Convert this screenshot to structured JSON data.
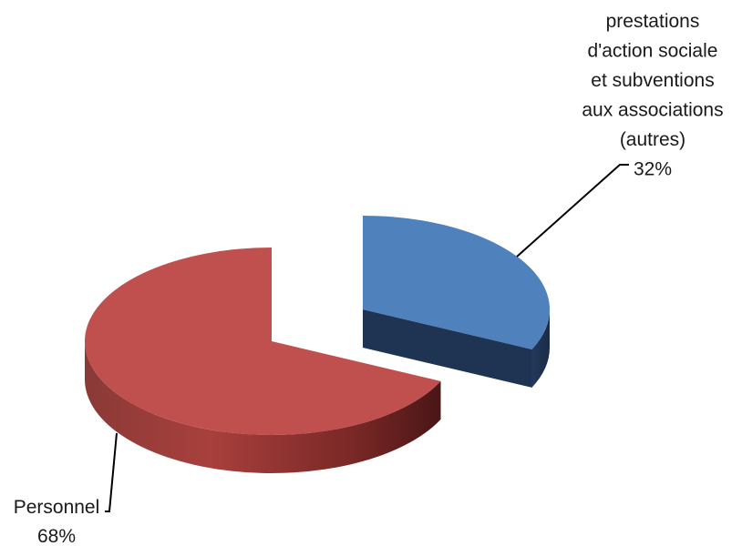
{
  "chart_data": {
    "type": "pie",
    "style": "3d-exploded",
    "title": "",
    "legend": "none",
    "slices": [
      {
        "label": "Personnel",
        "value": 68,
        "value_label": "68%",
        "color": "#c0504d",
        "side_color": "#8e3331"
      },
      {
        "label": "prestations d'action sociale et subventions aux associations (autres)",
        "label_lines": [
          "prestations",
          "d'action sociale",
          "et subventions",
          "aux associations",
          "(autres)"
        ],
        "value": 32,
        "value_label": "32%",
        "color": "#4f81bd",
        "side_color": "#1f3452"
      }
    ]
  }
}
